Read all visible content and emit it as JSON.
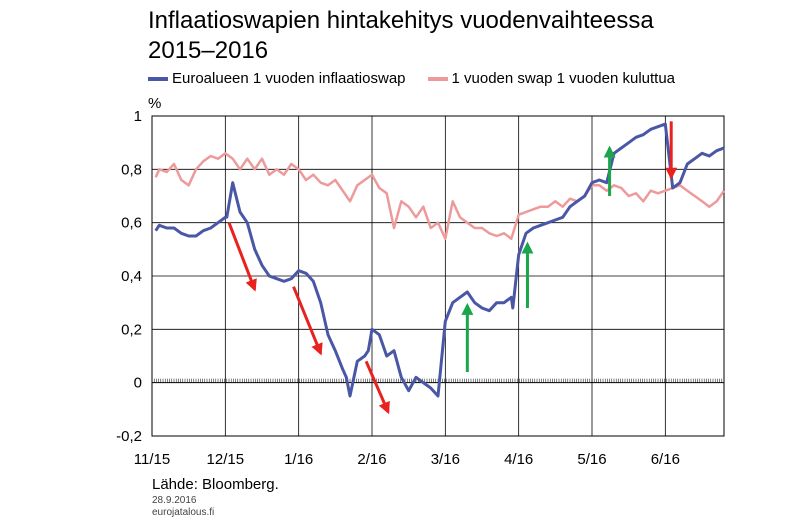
{
  "title_line1": "Inflaatioswapien hintakehitys vuodenvaihteessa",
  "title_line2": "2015–2016",
  "legend": [
    {
      "name": "Euroalueen 1 vuoden inflaatioswap",
      "color": "#4a57a6"
    },
    {
      "name": "1 vuoden swap 1 vuoden kuluttua",
      "color": "#ee9a9a"
    }
  ],
  "footer": {
    "source": "Lähde: Bloomberg.",
    "date": "28.9.2016",
    "site": "eurojatalous.fi"
  },
  "chart_data": {
    "type": "line",
    "ylabel": "%",
    "ylim": [
      -0.2,
      1.0
    ],
    "yticks": [
      -0.2,
      0,
      0.2,
      0.4,
      0.6,
      0.8,
      1.0
    ],
    "ytick_labels": [
      "-0,2",
      "0",
      "0,2",
      "0,4",
      "0,6",
      "0,8",
      "1"
    ],
    "xlim": [
      0,
      7.8
    ],
    "xticks": [
      0,
      1,
      2,
      3,
      4,
      5,
      6,
      7
    ],
    "xtick_labels": [
      "11/15",
      "12/15",
      "1/16",
      "2/16",
      "3/16",
      "4/16",
      "5/16",
      "6/16"
    ],
    "grid": true,
    "legend_position": "top",
    "series": [
      {
        "name": "Euroalueen 1 vuoden inflaatioswap",
        "color": "#4a57a6",
        "x": [
          0.05,
          0.1,
          0.2,
          0.3,
          0.4,
          0.5,
          0.6,
          0.7,
          0.8,
          0.9,
          1.0,
          1.02,
          1.1,
          1.2,
          1.3,
          1.4,
          1.5,
          1.6,
          1.7,
          1.8,
          1.9,
          2.0,
          2.1,
          2.2,
          2.3,
          2.4,
          2.5,
          2.6,
          2.65,
          2.7,
          2.8,
          2.9,
          2.95,
          3.0,
          3.1,
          3.2,
          3.3,
          3.4,
          3.5,
          3.6,
          3.7,
          3.8,
          3.9,
          4.0,
          4.1,
          4.2,
          4.3,
          4.4,
          4.5,
          4.6,
          4.7,
          4.8,
          4.9,
          4.92,
          5.0,
          5.1,
          5.2,
          5.3,
          5.4,
          5.5,
          5.6,
          5.7,
          5.8,
          5.9,
          6.0,
          6.1,
          6.2,
          6.3,
          6.4,
          6.5,
          6.6,
          6.7,
          6.8,
          6.9,
          7.0,
          7.1,
          7.2,
          7.3,
          7.4,
          7.5,
          7.6,
          7.7,
          7.8
        ],
        "y": [
          0.57,
          0.59,
          0.58,
          0.58,
          0.56,
          0.55,
          0.55,
          0.57,
          0.58,
          0.6,
          0.62,
          0.62,
          0.75,
          0.64,
          0.6,
          0.5,
          0.44,
          0.4,
          0.39,
          0.38,
          0.39,
          0.42,
          0.41,
          0.38,
          0.3,
          0.18,
          0.12,
          0.05,
          0.02,
          -0.05,
          0.08,
          0.1,
          0.12,
          0.2,
          0.18,
          0.1,
          0.12,
          0.02,
          -0.03,
          0.02,
          0.0,
          -0.02,
          -0.05,
          0.23,
          0.3,
          0.32,
          0.34,
          0.3,
          0.28,
          0.27,
          0.3,
          0.3,
          0.32,
          0.28,
          0.48,
          0.56,
          0.58,
          0.59,
          0.6,
          0.61,
          0.62,
          0.66,
          0.68,
          0.7,
          0.75,
          0.76,
          0.75,
          0.86,
          0.88,
          0.9,
          0.92,
          0.93,
          0.95,
          0.96,
          0.97,
          0.73,
          0.75,
          0.82,
          0.84,
          0.86,
          0.85,
          0.87,
          0.88
        ]
      },
      {
        "name": "1 vuoden swap 1 vuoden kuluttua",
        "color": "#ee9a9a",
        "x": [
          0.05,
          0.1,
          0.2,
          0.3,
          0.4,
          0.5,
          0.6,
          0.7,
          0.8,
          0.9,
          1.0,
          1.1,
          1.2,
          1.3,
          1.4,
          1.5,
          1.6,
          1.7,
          1.8,
          1.9,
          2.0,
          2.1,
          2.2,
          2.3,
          2.4,
          2.5,
          2.6,
          2.7,
          2.8,
          2.9,
          3.0,
          3.1,
          3.2,
          3.3,
          3.4,
          3.5,
          3.6,
          3.7,
          3.8,
          3.9,
          4.0,
          4.1,
          4.2,
          4.3,
          4.4,
          4.5,
          4.6,
          4.7,
          4.8,
          4.9,
          5.0,
          5.1,
          5.2,
          5.3,
          5.4,
          5.5,
          5.6,
          5.7,
          5.8,
          5.9,
          6.0,
          6.1,
          6.2,
          6.3,
          6.4,
          6.5,
          6.6,
          6.7,
          6.8,
          6.9,
          7.0,
          7.1,
          7.2,
          7.3,
          7.4,
          7.5,
          7.6,
          7.7,
          7.8
        ],
        "y": [
          0.77,
          0.8,
          0.79,
          0.82,
          0.76,
          0.74,
          0.8,
          0.83,
          0.85,
          0.84,
          0.86,
          0.84,
          0.8,
          0.84,
          0.8,
          0.84,
          0.78,
          0.8,
          0.78,
          0.82,
          0.8,
          0.76,
          0.78,
          0.75,
          0.74,
          0.76,
          0.72,
          0.68,
          0.74,
          0.76,
          0.78,
          0.73,
          0.71,
          0.58,
          0.68,
          0.66,
          0.62,
          0.66,
          0.58,
          0.6,
          0.54,
          0.68,
          0.62,
          0.6,
          0.58,
          0.58,
          0.56,
          0.55,
          0.56,
          0.54,
          0.63,
          0.64,
          0.65,
          0.66,
          0.66,
          0.68,
          0.66,
          0.69,
          0.68,
          0.7,
          0.74,
          0.74,
          0.72,
          0.74,
          0.73,
          0.7,
          0.71,
          0.68,
          0.72,
          0.71,
          0.72,
          0.73,
          0.74,
          0.72,
          0.7,
          0.68,
          0.66,
          0.68,
          0.72
        ]
      }
    ],
    "annotations": [
      {
        "type": "arrow",
        "color": "#e8221f",
        "from": [
          1.05,
          0.6
        ],
        "to": [
          1.4,
          0.35
        ]
      },
      {
        "type": "arrow",
        "color": "#e8221f",
        "from": [
          1.93,
          0.36
        ],
        "to": [
          2.3,
          0.11
        ]
      },
      {
        "type": "arrow",
        "color": "#e8221f",
        "from": [
          2.92,
          0.08
        ],
        "to": [
          3.22,
          -0.11
        ]
      },
      {
        "type": "arrow",
        "color": "#1aa64a",
        "from": [
          4.3,
          0.04
        ],
        "to": [
          4.3,
          0.29
        ]
      },
      {
        "type": "arrow",
        "color": "#1aa64a",
        "from": [
          5.12,
          0.28
        ],
        "to": [
          5.12,
          0.52
        ]
      },
      {
        "type": "arrow",
        "color": "#1aa64a",
        "from": [
          6.24,
          0.7
        ],
        "to": [
          6.24,
          0.88
        ]
      },
      {
        "type": "arrow",
        "color": "#e8221f",
        "from": [
          7.08,
          0.98
        ],
        "to": [
          7.08,
          0.77
        ]
      }
    ]
  }
}
